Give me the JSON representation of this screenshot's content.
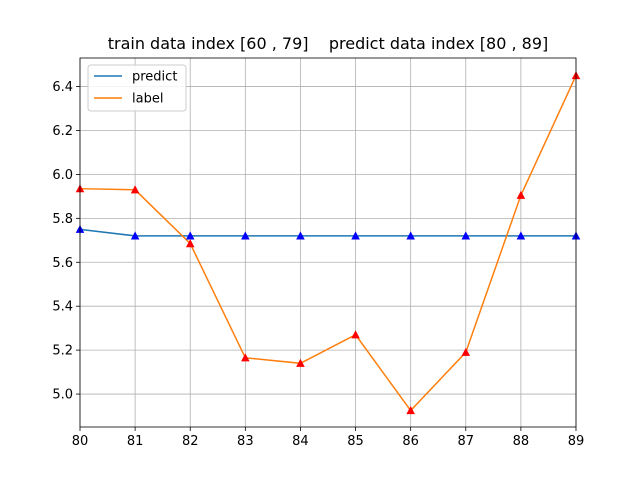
{
  "chart_data": {
    "type": "line",
    "title": "train data index [60 , 79]    predict data index [80 , 89]",
    "xlabel": "",
    "ylabel": "",
    "x": [
      80,
      81,
      82,
      83,
      84,
      85,
      86,
      87,
      88,
      89
    ],
    "xlim": [
      80,
      89
    ],
    "ylim": [
      4.85,
      6.53
    ],
    "xticks": [
      "80",
      "81",
      "82",
      "83",
      "84",
      "85",
      "86",
      "87",
      "88",
      "89"
    ],
    "yticks": [
      "5.0",
      "5.2",
      "5.4",
      "5.6",
      "5.8",
      "6.0",
      "6.2",
      "6.4"
    ],
    "grid": true,
    "legend_position": "top-left",
    "series": [
      {
        "name": "predict",
        "color": "#1f77b4",
        "marker": "triangle",
        "marker_color": "#0000ff",
        "values": [
          5.75,
          5.72,
          5.72,
          5.72,
          5.72,
          5.72,
          5.72,
          5.72,
          5.72,
          5.72
        ]
      },
      {
        "name": "label",
        "color": "#ff7f0e",
        "marker": "triangle",
        "marker_color": "#ff0000",
        "values": [
          5.935,
          5.93,
          5.685,
          5.165,
          5.14,
          5.27,
          4.925,
          5.19,
          5.905,
          6.45
        ]
      }
    ]
  }
}
